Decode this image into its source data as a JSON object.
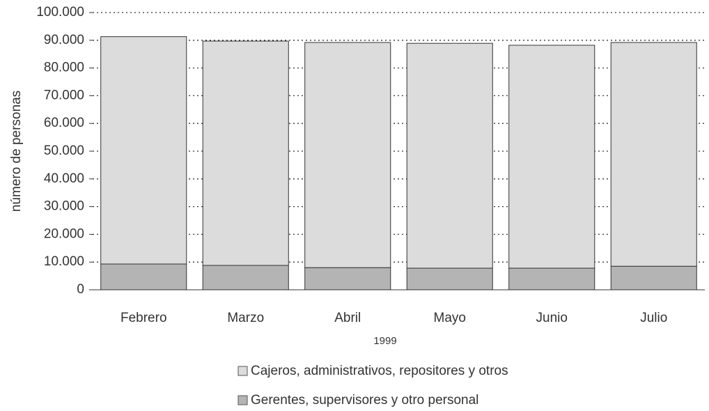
{
  "chart_data": {
    "type": "stacked-bar",
    "xlabel": "1999",
    "ylabel": "número de personas",
    "categories": [
      "Febrero",
      "Marzo",
      "Abril",
      "Mayo",
      "Junio",
      "Julio"
    ],
    "series": [
      {
        "name": "Gerentes, supervisores y  otro personal",
        "color": "#b4b4b4",
        "values": [
          9300,
          8800,
          8000,
          7800,
          7800,
          8500
        ]
      },
      {
        "name": "Cajeros, administrativos, repositores y otros",
        "color": "#dcdcdc",
        "values": [
          82000,
          80900,
          81200,
          81100,
          80400,
          80700
        ]
      }
    ],
    "ylim": [
      0,
      100000
    ],
    "yticks": [
      0,
      {
        "value": 10000,
        "label": "10.000"
      },
      {
        "value": 20000,
        "label": "20.000"
      },
      {
        "value": 30000,
        "label": "30.000"
      },
      {
        "value": 40000,
        "label": "40.000"
      },
      {
        "value": 50000,
        "label": "50.000"
      },
      {
        "value": 60000,
        "label": "60.000"
      },
      {
        "value": 70000,
        "label": "70.000"
      },
      {
        "value": 80000,
        "label": "80.000"
      },
      {
        "value": 90000,
        "label": "90.000"
      },
      {
        "value": 100000,
        "label": "100.000"
      }
    ],
    "grid": true
  }
}
